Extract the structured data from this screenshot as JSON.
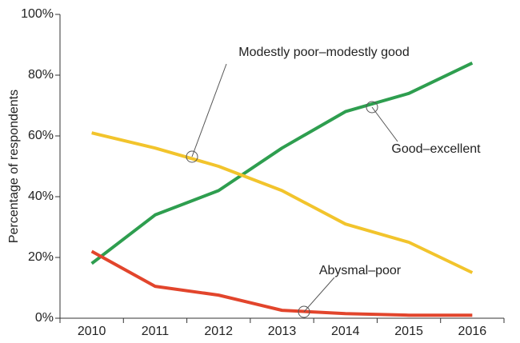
{
  "chart_data": {
    "type": "line",
    "y_label": "Percentage of respondents",
    "categories": [
      "2010",
      "2011",
      "2012",
      "2013",
      "2014",
      "2015",
      "2016"
    ],
    "series": [
      {
        "name": "Good–excellent",
        "color": "#2e9e4f",
        "values": [
          18,
          34,
          42,
          56,
          68,
          74,
          84
        ]
      },
      {
        "name": "Modestly poor–modestly good",
        "color": "#f2c42c",
        "values": [
          61,
          56,
          50,
          42,
          31,
          25,
          15
        ]
      },
      {
        "name": "Abysmal–poor",
        "color": "#e2452c",
        "values": [
          22,
          10.5,
          7.6,
          2.6,
          1.5,
          1,
          1
        ]
      }
    ],
    "ylim": [
      0,
      100
    ],
    "yticks": [
      {
        "value": 0,
        "label": "0%"
      },
      {
        "value": 20,
        "label": "20%"
      },
      {
        "value": 40,
        "label": "40%"
      },
      {
        "value": 60,
        "label": "60%"
      },
      {
        "value": 80,
        "label": "80%"
      },
      {
        "value": 100,
        "label": "100%"
      }
    ],
    "grid": false
  }
}
